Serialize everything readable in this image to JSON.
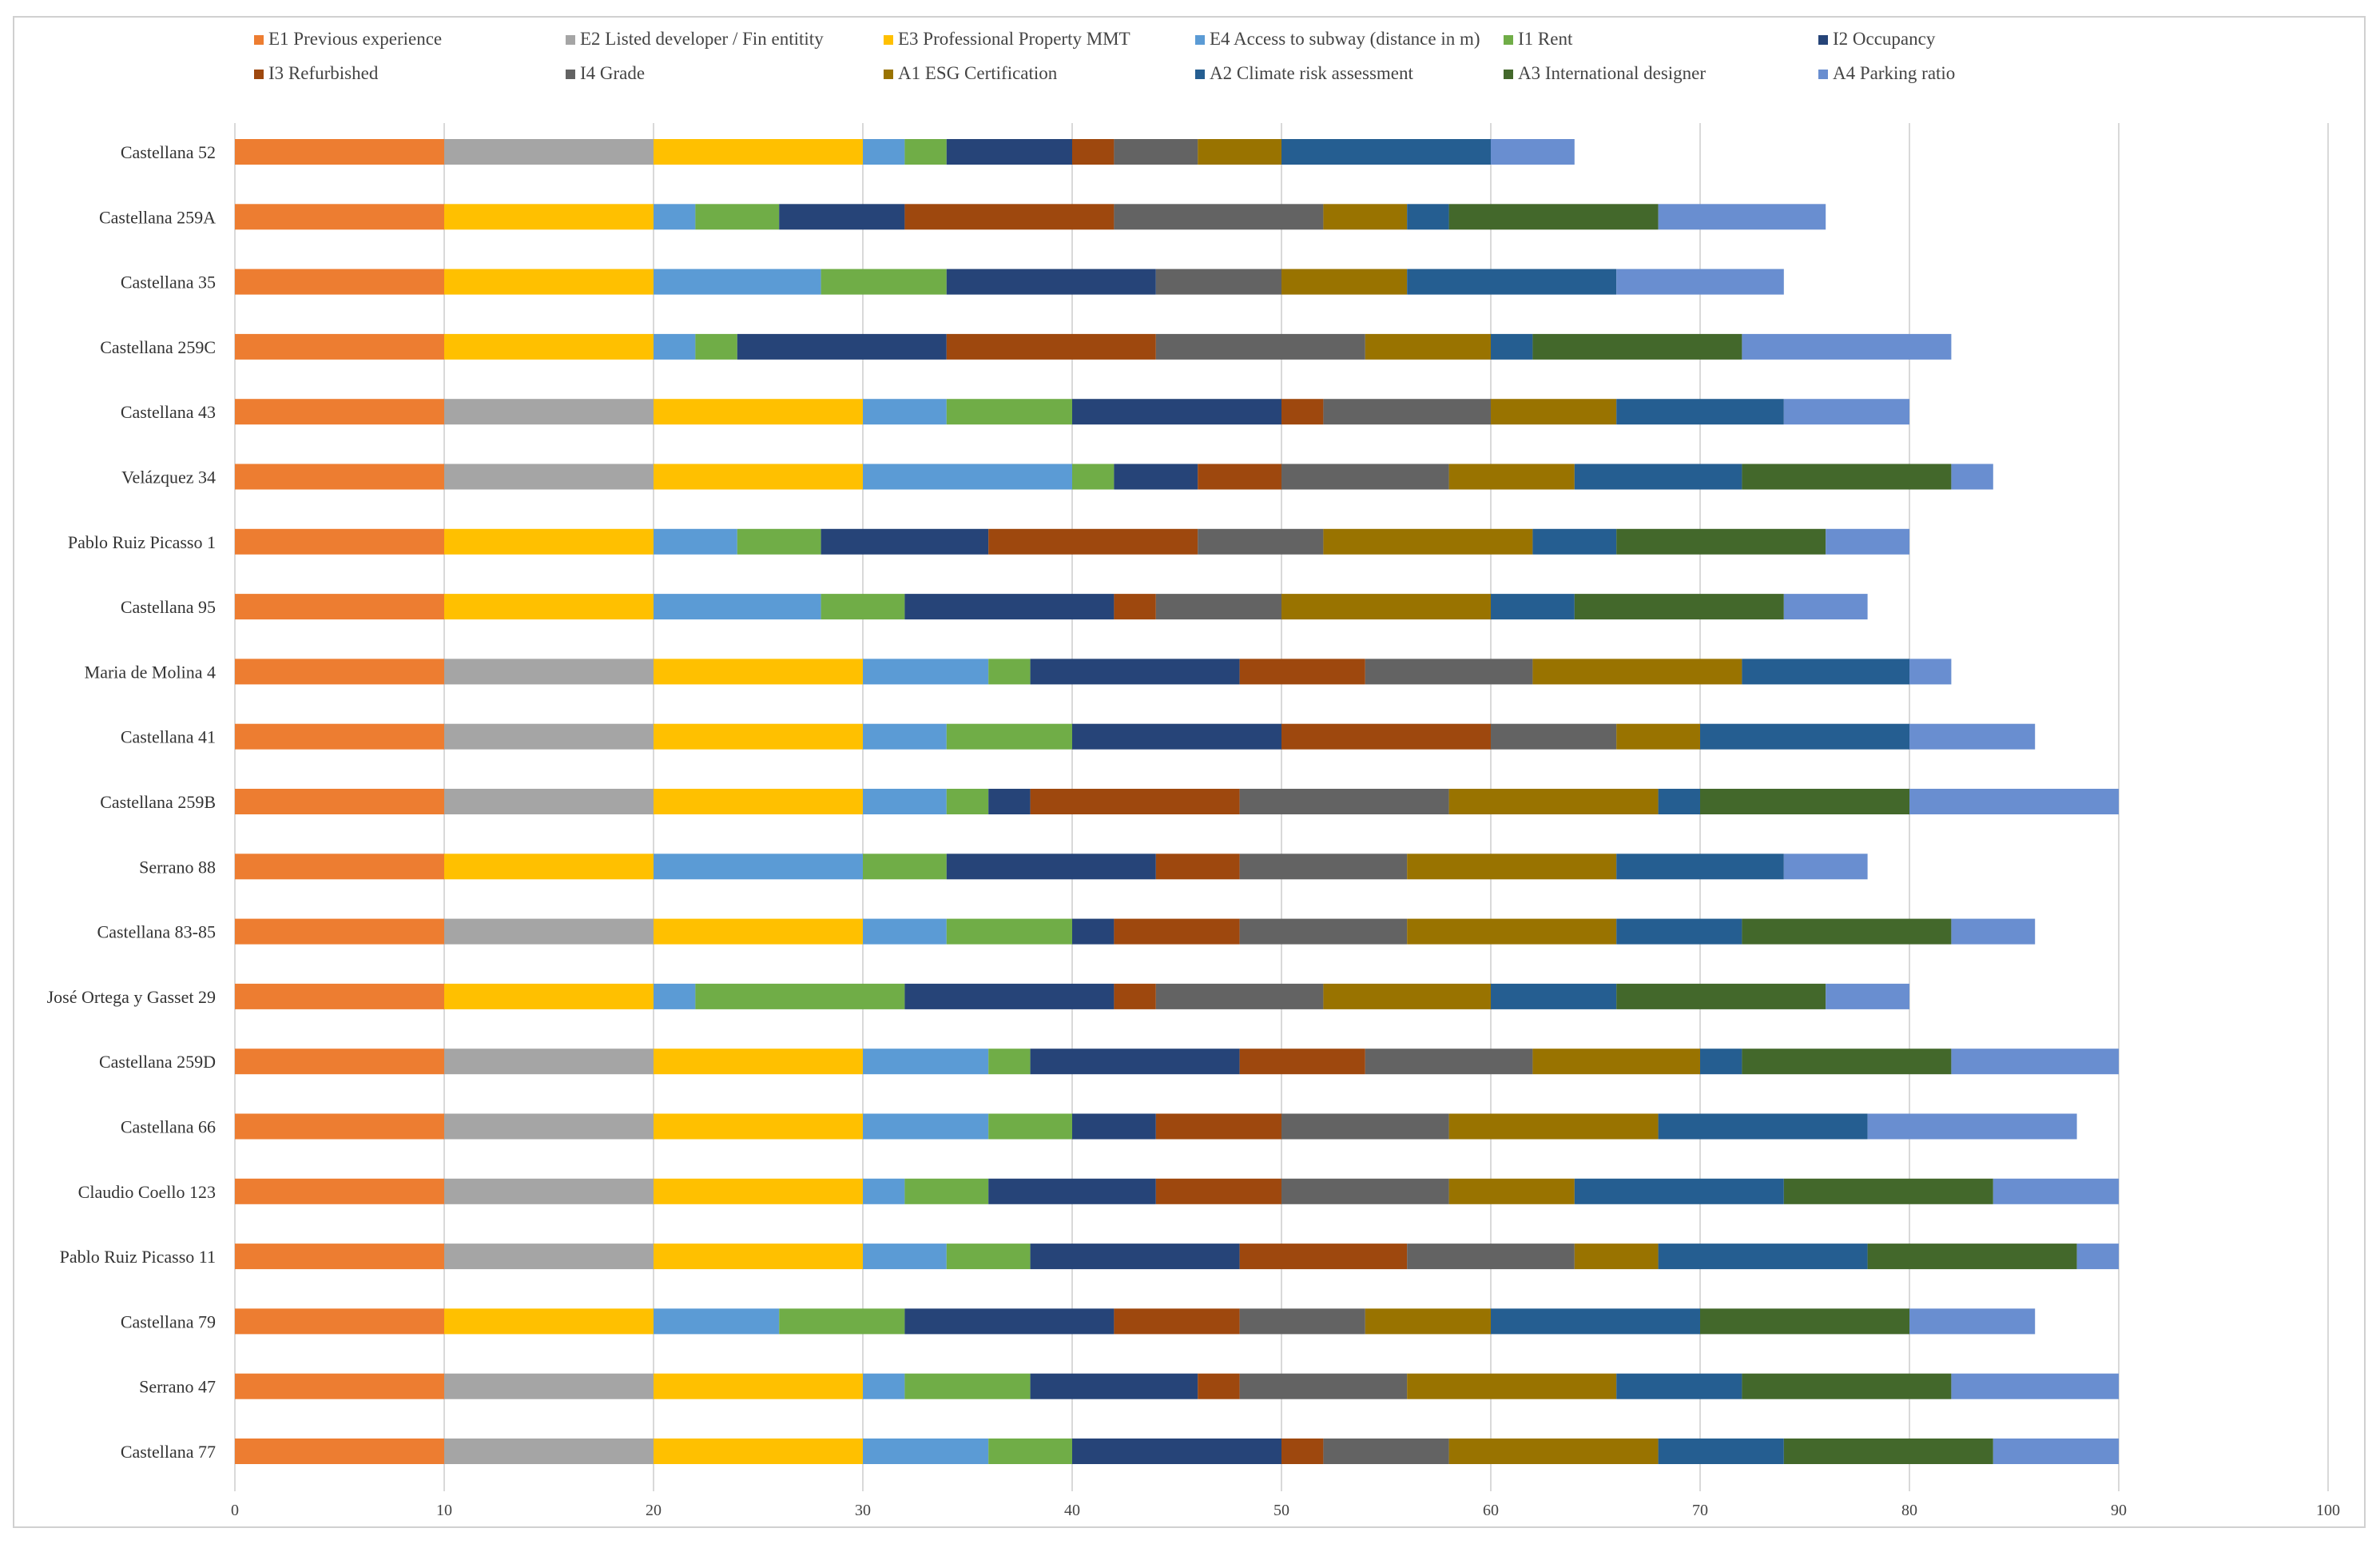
{
  "chart_data": {
    "type": "bar",
    "orientation": "horizontal",
    "stacked": true,
    "title": "",
    "xlabel": "",
    "ylabel": "",
    "xlim": [
      0,
      100
    ],
    "xticks": [
      0,
      10,
      20,
      30,
      40,
      50,
      60,
      70,
      80,
      90,
      100
    ],
    "grid": true,
    "legend_position": "top",
    "categories": [
      "Castellana 52",
      "Castellana 259A",
      "Castellana 35",
      "Castellana 259C",
      "Castellana 43",
      "Velázquez 34",
      "Pablo Ruiz Picasso 1",
      "Castellana 95",
      "Maria de Molina 4",
      "Castellana 41",
      "Castellana 259B",
      "Serrano 88",
      "Castellana 83-85",
      "José Ortega y Gasset 29",
      "Castellana 259D",
      "Castellana 66",
      "Claudio Coello 123",
      "Pablo Ruiz Picasso 11",
      "Castellana 79",
      "Serrano 47",
      "Castellana 77"
    ],
    "series": [
      {
        "name": "E1 Previous experience",
        "color": "#ED7D31",
        "values": [
          10,
          10,
          10,
          10,
          10,
          10,
          10,
          10,
          10,
          10,
          10,
          10,
          10,
          10,
          10,
          10,
          10,
          10,
          10,
          10,
          10
        ]
      },
      {
        "name": "E2 Listed developer / Fin entitity",
        "color": "#A5A5A5",
        "values": [
          10,
          0,
          0,
          0,
          10,
          10,
          0,
          0,
          10,
          10,
          10,
          0,
          10,
          0,
          10,
          10,
          10,
          10,
          0,
          10,
          10
        ]
      },
      {
        "name": "E3 Professional Property MMT",
        "color": "#FFC000",
        "values": [
          10,
          10,
          10,
          10,
          10,
          10,
          10,
          10,
          10,
          10,
          10,
          10,
          10,
          10,
          10,
          10,
          10,
          10,
          10,
          10,
          10
        ]
      },
      {
        "name": "E4 Access to subway (distance in m)",
        "color": "#5B9BD5",
        "values": [
          2,
          2,
          8,
          2,
          4,
          10,
          4,
          8,
          6,
          4,
          4,
          10,
          4,
          2,
          6,
          6,
          2,
          4,
          6,
          2,
          6
        ]
      },
      {
        "name": "I1 Rent",
        "color": "#70AD47",
        "values": [
          2,
          4,
          6,
          2,
          6,
          2,
          4,
          4,
          2,
          6,
          2,
          4,
          6,
          10,
          2,
          4,
          4,
          4,
          6,
          6,
          4
        ]
      },
      {
        "name": "I2 Occupancy",
        "color": "#264478",
        "values": [
          6,
          6,
          10,
          10,
          10,
          4,
          8,
          10,
          10,
          10,
          2,
          10,
          2,
          10,
          10,
          4,
          8,
          10,
          10,
          8,
          10
        ]
      },
      {
        "name": "I3 Refurbished",
        "color": "#9E480E",
        "values": [
          2,
          10,
          0,
          10,
          2,
          4,
          10,
          2,
          6,
          10,
          10,
          4,
          6,
          2,
          6,
          6,
          6,
          8,
          6,
          2,
          2
        ]
      },
      {
        "name": "I4 Grade",
        "color": "#636363",
        "values": [
          4,
          10,
          6,
          10,
          8,
          8,
          6,
          6,
          8,
          6,
          10,
          8,
          8,
          8,
          8,
          8,
          8,
          8,
          6,
          8,
          6
        ]
      },
      {
        "name": "A1 ESG Certification",
        "color": "#997300",
        "values": [
          4,
          4,
          6,
          6,
          6,
          6,
          10,
          10,
          10,
          4,
          10,
          10,
          10,
          8,
          8,
          10,
          6,
          4,
          6,
          10,
          10
        ]
      },
      {
        "name": "A2 Climate risk assessment",
        "color": "#255E91",
        "values": [
          10,
          2,
          10,
          2,
          8,
          8,
          4,
          4,
          8,
          10,
          2,
          8,
          6,
          6,
          2,
          10,
          10,
          10,
          10,
          6,
          6
        ]
      },
      {
        "name": "A3 International designer",
        "color": "#43682B",
        "values": [
          0,
          10,
          0,
          10,
          0,
          10,
          10,
          10,
          0,
          0,
          10,
          0,
          10,
          10,
          10,
          0,
          10,
          10,
          10,
          10,
          10
        ]
      },
      {
        "name": "A4 Parking ratio",
        "color": "#698ED0",
        "values": [
          4,
          8,
          8,
          10,
          6,
          2,
          4,
          4,
          2,
          6,
          10,
          4,
          4,
          4,
          8,
          10,
          6,
          2,
          6,
          8,
          6
        ]
      }
    ]
  }
}
